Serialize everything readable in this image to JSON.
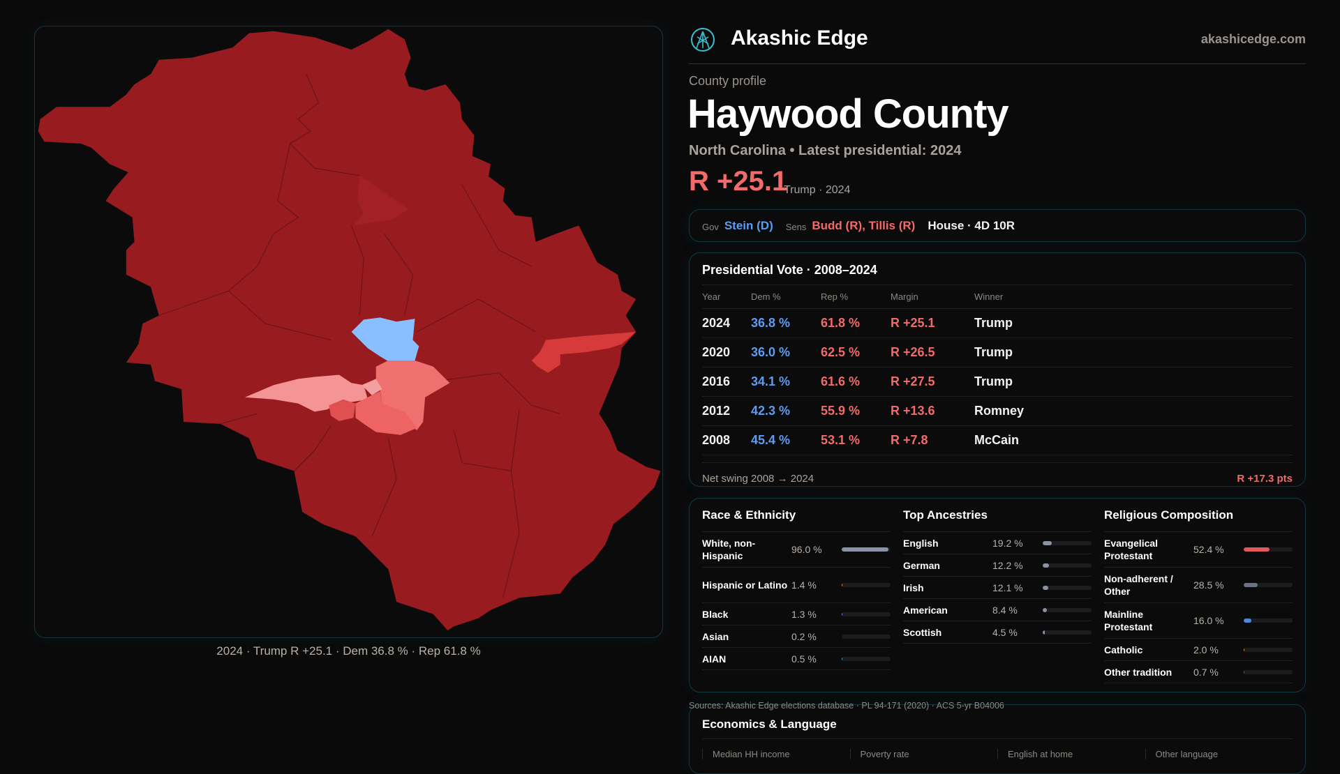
{
  "brand": {
    "name": "Akashic Edge",
    "site": "akashicedge.com",
    "logo_icon": "akashic-logo-icon"
  },
  "profile": {
    "eyebrow": "County profile",
    "title": "Haywood County",
    "subtitle": "North Carolina • Latest presidential: 2024",
    "margin": "R +25.1",
    "margin_note": "Trump · 2024"
  },
  "officials": {
    "gov_label": "Gov",
    "gov": "Stein (D)",
    "sens_label": "Sens",
    "sens": "Budd (R), Tillis (R)",
    "house": "House · 4D 10R"
  },
  "map": {
    "caption": "2024 · Trump R +25.1 · Dem 36.8 % · Rep 61.8 %",
    "colors": {
      "strong_r": "#981b1f",
      "dem": "#8abfff",
      "lean_r": "#f07070",
      "light_r": "#f59494"
    }
  },
  "presidential": {
    "title": "Presidential Vote · 2008–2024",
    "headers": [
      "Year",
      "Dem %",
      "Rep %",
      "Margin",
      "Winner"
    ],
    "rows": [
      [
        "2024",
        "36.8 %",
        "61.8 %",
        "R +25.1",
        "Trump"
      ],
      [
        "2020",
        "36.0 %",
        "62.5 %",
        "R +26.5",
        "Trump"
      ],
      [
        "2016",
        "34.1 %",
        "61.6 %",
        "R +27.5",
        "Trump"
      ],
      [
        "2012",
        "42.3 %",
        "55.9 %",
        "R +13.6",
        "Romney"
      ],
      [
        "2008",
        "45.4 %",
        "53.1 %",
        "R +7.8",
        "McCain"
      ]
    ],
    "swing_label": "Net swing 2008 → 2024",
    "swing_value": "R +17.3 pts"
  },
  "race": {
    "title": "Race & Ethnicity",
    "items": [
      {
        "label": "White, non-Hispanic",
        "value": "96.0 %",
        "pct": 96.0,
        "color": "#8a93a6"
      },
      {
        "label": "Hispanic or Latino",
        "value": "1.4 %",
        "pct": 1.4,
        "color": "#e0a030"
      },
      {
        "label": "Black",
        "value": "1.3 %",
        "pct": 1.3,
        "color": "#8a7ae0"
      },
      {
        "label": "Asian",
        "value": "0.2 %",
        "pct": 0.2,
        "color": "#5aa0c0"
      },
      {
        "label": "AIAN",
        "value": "0.5 %",
        "pct": 0.5,
        "color": "#5aa0c0"
      }
    ]
  },
  "ancestry": {
    "title": "Top Ancestries",
    "items": [
      {
        "label": "English",
        "value": "19.2 %",
        "pct": 19.2,
        "color": "#8a93a6"
      },
      {
        "label": "German",
        "value": "12.2 %",
        "pct": 12.2,
        "color": "#8a93a6"
      },
      {
        "label": "Irish",
        "value": "12.1 %",
        "pct": 12.1,
        "color": "#8a93a6"
      },
      {
        "label": "American",
        "value": "8.4 %",
        "pct": 8.4,
        "color": "#8a93a6"
      },
      {
        "label": "Scottish",
        "value": "4.5 %",
        "pct": 4.5,
        "color": "#8a93a6"
      }
    ]
  },
  "religion": {
    "title": "Religious Composition",
    "items": [
      {
        "label": "Evangelical Protestant",
        "value": "52.4 %",
        "pct": 52.4,
        "color": "#e05a5a"
      },
      {
        "label": "Non-adherent / Other",
        "value": "28.5 %",
        "pct": 28.5,
        "color": "#6b7280"
      },
      {
        "label": "Mainline Protestant",
        "value": "16.0 %",
        "pct": 16.0,
        "color": "#4a88e0"
      },
      {
        "label": "Catholic",
        "value": "2.0 %",
        "pct": 2.0,
        "color": "#e0a030"
      },
      {
        "label": "Other tradition",
        "value": "0.7 %",
        "pct": 0.7,
        "color": "#6b7280"
      }
    ]
  },
  "sources": "Sources: Akashic Edge elections database · PL 94-171 (2020) · ACS 5-yr B04006",
  "economics": {
    "title": "Economics & Language",
    "columns": [
      "Median HH income",
      "Poverty rate",
      "English at home",
      "Other language"
    ]
  }
}
